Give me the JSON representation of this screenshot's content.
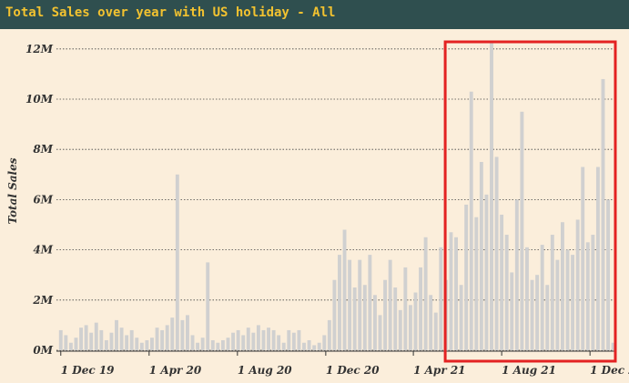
{
  "header": {
    "title": "Total Sales over year with US holiday - All"
  },
  "colors": {
    "header_bg": "#2f4f4f",
    "title": "#f2c230",
    "bars": "#d0d0d0",
    "highlight": "#e32222",
    "background": "#fbeedb"
  },
  "chart_data": {
    "type": "bar",
    "title": "Total Sales over year with US holiday - All",
    "xlabel": "",
    "ylabel": "Total Sales",
    "ylim": [
      0,
      12.5
    ],
    "y_unit": "M",
    "x_range": [
      "2019-11-25",
      "2022-01-05"
    ],
    "grid": "horizontal-dotted",
    "y_ticks": [
      {
        "value": 0,
        "label": "0M"
      },
      {
        "value": 2,
        "label": "2M"
      },
      {
        "value": 4,
        "label": "4M"
      },
      {
        "value": 6,
        "label": "6M"
      },
      {
        "value": 8,
        "label": "8M"
      },
      {
        "value": 10,
        "label": "10M"
      },
      {
        "value": 12,
        "label": "12M"
      }
    ],
    "x_ticks": [
      {
        "date": "2019-12-01",
        "label": "1 Dec 19"
      },
      {
        "date": "2020-04-01",
        "label": "1 Apr 20"
      },
      {
        "date": "2020-08-01",
        "label": "1 Aug 20"
      },
      {
        "date": "2020-12-01",
        "label": "1 Dec 20"
      },
      {
        "date": "2021-04-01",
        "label": "1 Apr 21"
      },
      {
        "date": "2021-08-01",
        "label": "1 Aug 21"
      },
      {
        "date": "2021-12-01",
        "label": "1 Dec 21"
      }
    ],
    "series": [
      {
        "points": [
          [
            "2019-12-01",
            0.8
          ],
          [
            "2019-12-08",
            0.6
          ],
          [
            "2019-12-15",
            0.3
          ],
          [
            "2019-12-22",
            0.5
          ],
          [
            "2019-12-29",
            0.9
          ],
          [
            "2020-01-05",
            1.0
          ],
          [
            "2020-01-12",
            0.7
          ],
          [
            "2020-01-19",
            1.1
          ],
          [
            "2020-01-26",
            0.8
          ],
          [
            "2020-02-02",
            0.4
          ],
          [
            "2020-02-09",
            0.7
          ],
          [
            "2020-02-16",
            1.2
          ],
          [
            "2020-02-23",
            0.9
          ],
          [
            "2020-03-01",
            0.6
          ],
          [
            "2020-03-08",
            0.8
          ],
          [
            "2020-03-15",
            0.5
          ],
          [
            "2020-03-22",
            0.3
          ],
          [
            "2020-03-29",
            0.4
          ],
          [
            "2020-04-05",
            0.5
          ],
          [
            "2020-04-12",
            0.9
          ],
          [
            "2020-04-19",
            0.8
          ],
          [
            "2020-04-26",
            1.0
          ],
          [
            "2020-05-03",
            1.3
          ],
          [
            "2020-05-10",
            7.0
          ],
          [
            "2020-05-17",
            1.2
          ],
          [
            "2020-05-24",
            1.4
          ],
          [
            "2020-05-31",
            0.6
          ],
          [
            "2020-06-07",
            0.3
          ],
          [
            "2020-06-14",
            0.5
          ],
          [
            "2020-06-21",
            3.5
          ],
          [
            "2020-06-28",
            0.4
          ],
          [
            "2020-07-05",
            0.3
          ],
          [
            "2020-07-12",
            0.4
          ],
          [
            "2020-07-19",
            0.5
          ],
          [
            "2020-07-26",
            0.7
          ],
          [
            "2020-08-02",
            0.8
          ],
          [
            "2020-08-09",
            0.6
          ],
          [
            "2020-08-16",
            0.9
          ],
          [
            "2020-08-23",
            0.7
          ],
          [
            "2020-08-30",
            1.0
          ],
          [
            "2020-09-06",
            0.8
          ],
          [
            "2020-09-13",
            0.9
          ],
          [
            "2020-09-20",
            0.8
          ],
          [
            "2020-09-27",
            0.6
          ],
          [
            "2020-10-04",
            0.3
          ],
          [
            "2020-10-11",
            0.8
          ],
          [
            "2020-10-18",
            0.7
          ],
          [
            "2020-10-25",
            0.8
          ],
          [
            "2020-11-01",
            0.3
          ],
          [
            "2020-11-08",
            0.4
          ],
          [
            "2020-11-15",
            0.2
          ],
          [
            "2020-11-22",
            0.3
          ],
          [
            "2020-11-29",
            0.6
          ],
          [
            "2020-12-06",
            1.2
          ],
          [
            "2020-12-13",
            2.8
          ],
          [
            "2020-12-20",
            3.8
          ],
          [
            "2020-12-27",
            4.8
          ],
          [
            "2021-01-03",
            3.6
          ],
          [
            "2021-01-10",
            2.5
          ],
          [
            "2021-01-17",
            3.6
          ],
          [
            "2021-01-24",
            2.6
          ],
          [
            "2021-01-31",
            3.8
          ],
          [
            "2021-02-07",
            2.2
          ],
          [
            "2021-02-14",
            1.4
          ],
          [
            "2021-02-21",
            2.8
          ],
          [
            "2021-02-28",
            3.6
          ],
          [
            "2021-03-07",
            2.5
          ],
          [
            "2021-03-14",
            1.6
          ],
          [
            "2021-03-21",
            3.3
          ],
          [
            "2021-03-28",
            1.8
          ],
          [
            "2021-04-04",
            2.3
          ],
          [
            "2021-04-11",
            3.3
          ],
          [
            "2021-04-18",
            4.5
          ],
          [
            "2021-04-25",
            2.2
          ],
          [
            "2021-05-02",
            1.5
          ],
          [
            "2021-05-09",
            4.1
          ],
          [
            "2021-05-16",
            2.8
          ],
          [
            "2021-05-23",
            4.7
          ],
          [
            "2021-05-30",
            4.5
          ],
          [
            "2021-06-06",
            2.6
          ],
          [
            "2021-06-13",
            5.8
          ],
          [
            "2021-06-20",
            10.3
          ],
          [
            "2021-06-27",
            5.3
          ],
          [
            "2021-07-04",
            7.5
          ],
          [
            "2021-07-11",
            6.2
          ],
          [
            "2021-07-18",
            12.3
          ],
          [
            "2021-07-25",
            7.7
          ],
          [
            "2021-08-01",
            5.4
          ],
          [
            "2021-08-08",
            4.6
          ],
          [
            "2021-08-15",
            3.1
          ],
          [
            "2021-08-22",
            6.0
          ],
          [
            "2021-08-29",
            9.5
          ],
          [
            "2021-09-05",
            4.1
          ],
          [
            "2021-09-12",
            2.8
          ],
          [
            "2021-09-19",
            3.0
          ],
          [
            "2021-09-26",
            4.2
          ],
          [
            "2021-10-03",
            2.6
          ],
          [
            "2021-10-10",
            4.6
          ],
          [
            "2021-10-17",
            3.6
          ],
          [
            "2021-10-24",
            5.1
          ],
          [
            "2021-10-31",
            4.0
          ],
          [
            "2021-11-07",
            3.8
          ],
          [
            "2021-11-14",
            5.2
          ],
          [
            "2021-11-21",
            7.3
          ],
          [
            "2021-11-28",
            4.3
          ],
          [
            "2021-12-05",
            4.6
          ],
          [
            "2021-12-12",
            7.3
          ],
          [
            "2021-12-19",
            10.8
          ],
          [
            "2021-12-26",
            6.0
          ],
          [
            "2022-01-02",
            0.3
          ]
        ]
      }
    ],
    "annotations": [
      {
        "type": "highlight-rect",
        "from": "2021-05-15",
        "to": "2022-01-05",
        "color": "#e32222"
      }
    ]
  }
}
